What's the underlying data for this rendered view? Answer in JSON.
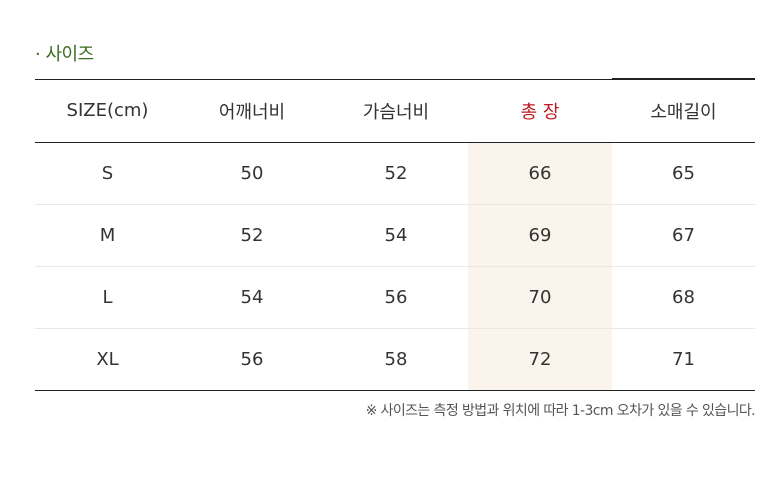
{
  "section_title": "· 사이즈",
  "table": {
    "headers": [
      "SIZE(cm)",
      "어깨너비",
      "가슴너비",
      "총 장",
      "소매길이"
    ],
    "highlight_color": "#c0181e",
    "highlight_background": "#faf4ec",
    "rows": [
      [
        "S",
        "50",
        "52",
        "66",
        "65"
      ],
      [
        "M",
        "52",
        "54",
        "69",
        "67"
      ],
      [
        "L",
        "54",
        "56",
        "70",
        "68"
      ],
      [
        "XL",
        "56",
        "58",
        "72",
        "71"
      ]
    ]
  },
  "note": "※ 사이즈는 측정 방법과 위치에 따라 1-3cm 오차가 있을 수 있습니다."
}
